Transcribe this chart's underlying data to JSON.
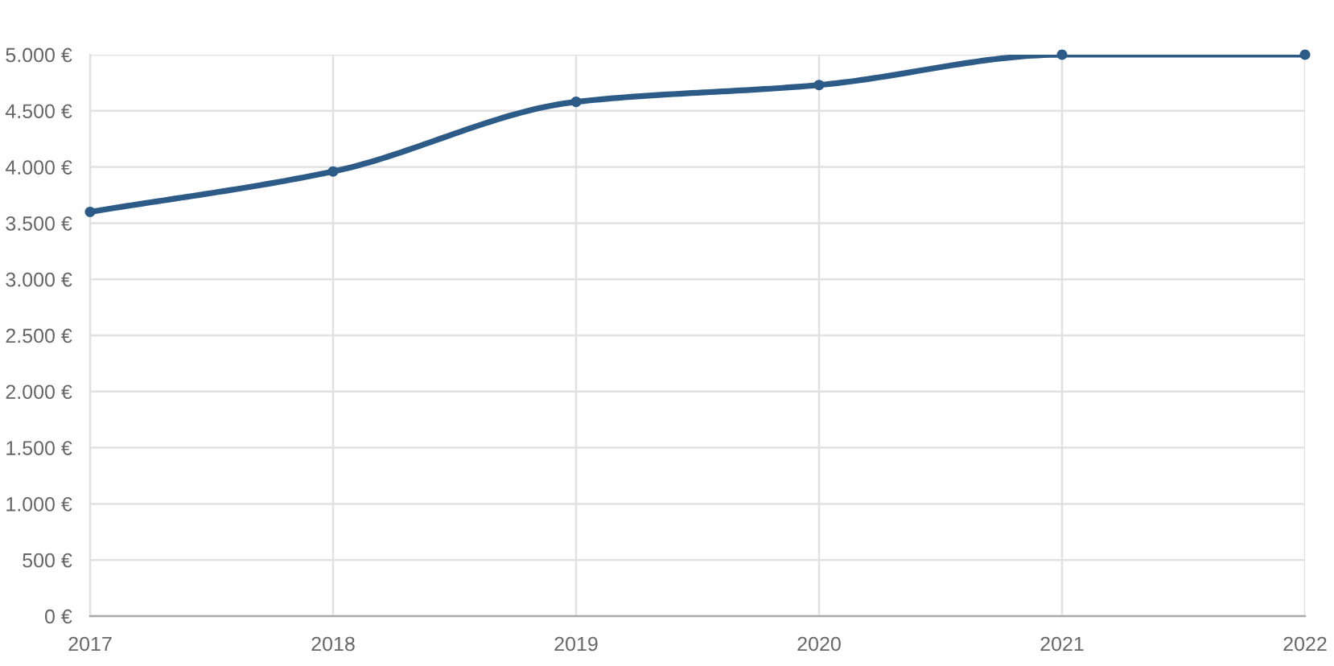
{
  "chart_data": {
    "type": "line",
    "x": [
      2017,
      2018,
      2019,
      2020,
      2021,
      2022
    ],
    "series": [
      {
        "color": "#2d5b88",
        "values": [
          3600,
          3960,
          4580,
          4730,
          5000,
          5000
        ]
      }
    ],
    "xlim": [
      2017,
      2022
    ],
    "xticks": [
      2017,
      2018,
      2019,
      2020,
      2021,
      2022
    ],
    "ylim": [
      0,
      5000
    ],
    "yticks": [
      {
        "value": 0,
        "label": "0 €"
      },
      {
        "value": 500,
        "label": "500 €"
      },
      {
        "value": 1000,
        "label": "1.000 €"
      },
      {
        "value": 1500,
        "label": "1.500 €"
      },
      {
        "value": 2000,
        "label": "2.000 €"
      },
      {
        "value": 2500,
        "label": "2.500 €"
      },
      {
        "value": 3000,
        "label": "3.000 €"
      },
      {
        "value": 3500,
        "label": "3.500 €"
      },
      {
        "value": 4000,
        "label": "4.000 €"
      },
      {
        "value": 4500,
        "label": "4.500 €"
      },
      {
        "value": 5000,
        "label": "5.000 €"
      }
    ],
    "grid": true,
    "marker": "circle",
    "line_style": "solid"
  }
}
